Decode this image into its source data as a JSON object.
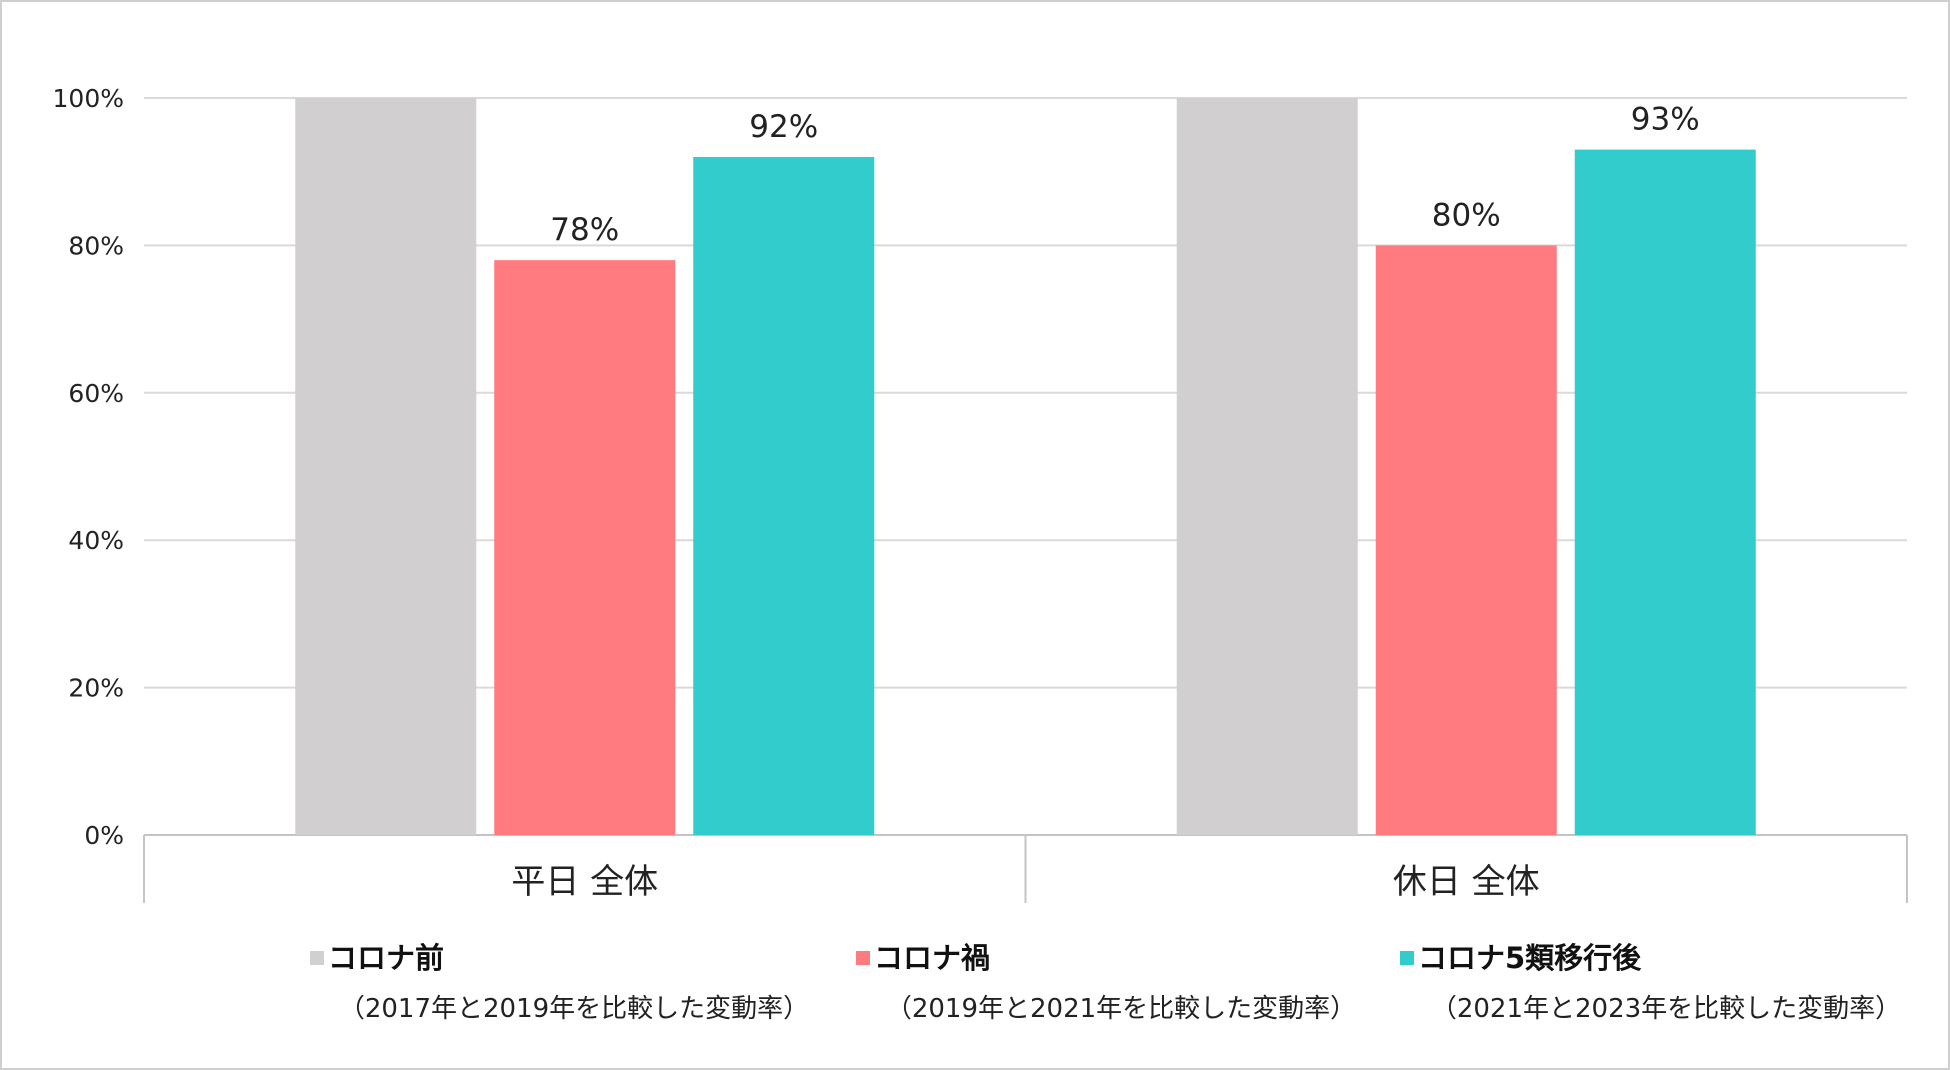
{
  "chart_data": {
    "type": "bar",
    "categories": [
      "平日 全体",
      "休日 全体"
    ],
    "ylim": [
      0,
      100
    ],
    "yticks": [
      0,
      20,
      40,
      60,
      80,
      100
    ],
    "ytick_labels": [
      "0%",
      "20%",
      "40%",
      "60%",
      "80%",
      "100%"
    ],
    "grid": true,
    "legend_position": "bottom",
    "series": [
      {
        "name": "コロナ前",
        "note": "（2017年と2019年を比較した変動率）",
        "color": "#d1cfd0",
        "values": [
          100,
          100
        ],
        "labels": [
          "",
          ""
        ]
      },
      {
        "name": "コロナ禍",
        "note": "（2019年と2021年を比較した変動率）",
        "color": "#ff7b7f",
        "values": [
          78,
          80
        ],
        "labels": [
          "78%",
          "80%"
        ]
      },
      {
        "name": "コロナ5類移行後",
        "note": "（2021年と2023年を比較した変動率）",
        "color": "#33cccc",
        "values": [
          92,
          93
        ],
        "labels": [
          "92%",
          "93%"
        ]
      }
    ]
  }
}
